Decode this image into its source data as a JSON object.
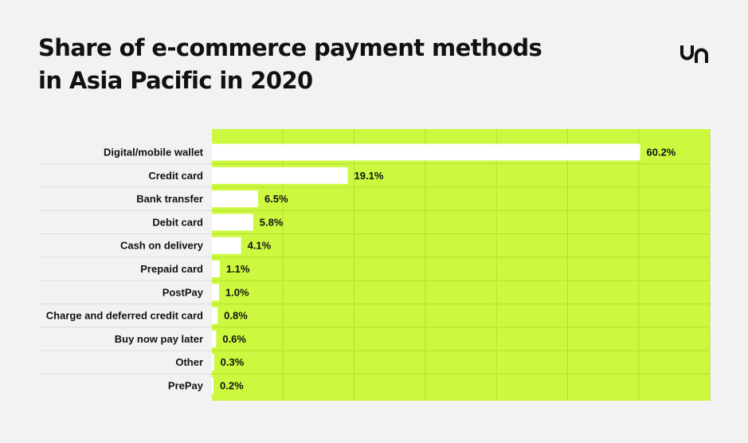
{
  "title_line1": "Share of e-commerce payment methods",
  "title_line2": "in Asia Pacific in 2020",
  "logo_icon": "un-logo-icon",
  "colors": {
    "plot_background": "#ccf93f",
    "bar": "#ffffff",
    "grid": "#b5df30",
    "row_divider": "#dcdcdc",
    "page_background": "#f2f2f2"
  },
  "chart_data": {
    "type": "bar",
    "orientation": "horizontal",
    "title": "Share of e-commerce payment methods in Asia Pacific in 2020",
    "categories": [
      "Digital/mobile wallet",
      "Credit card",
      "Bank transfer",
      "Debit card",
      "Cash on delivery",
      "Prepaid card",
      "PostPay",
      "Charge and deferred credit card",
      "Buy now pay later",
      "Other",
      "PrePay"
    ],
    "values": [
      60.2,
      19.1,
      6.5,
      5.8,
      4.1,
      1.1,
      1.0,
      0.8,
      0.6,
      0.3,
      0.2
    ],
    "value_labels": [
      "60.2%",
      "19.1%",
      "6.5%",
      "5.8%",
      "4.1%",
      "1.1%",
      "1.0%",
      "0.8%",
      "0.6%",
      "0.3%",
      "0.2%"
    ],
    "unit": "%",
    "xlim": [
      0,
      70
    ],
    "grid": true,
    "xlabel": "",
    "ylabel": ""
  }
}
